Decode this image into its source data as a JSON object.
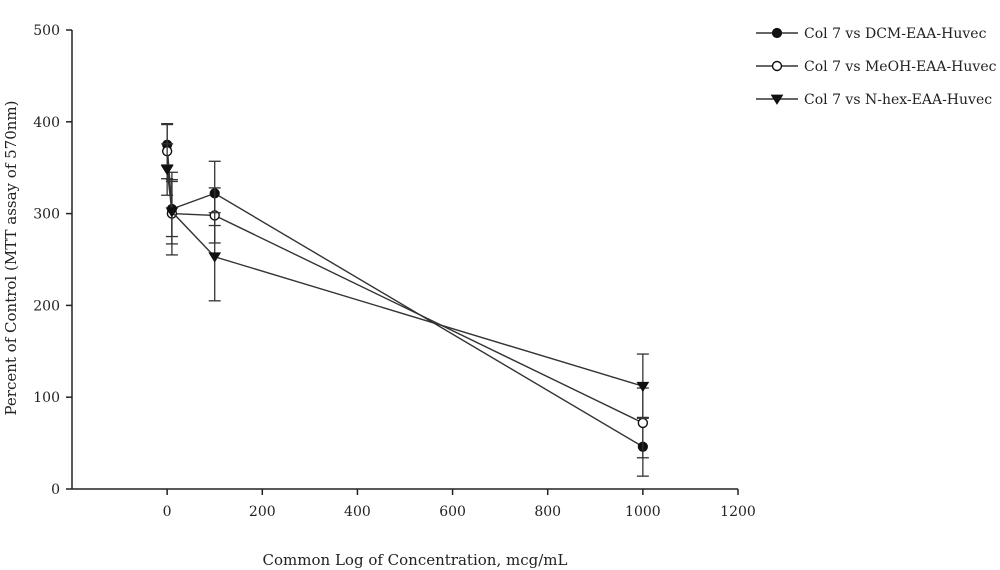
{
  "chart_data": {
    "type": "line",
    "xlabel": "Common Log of Concentration, mcg/mL",
    "ylabel": "Percent of Control (MTT assay of 570nm)",
    "xlim": [
      -200,
      1200
    ],
    "ylim": [
      0,
      500
    ],
    "xticks": [
      0,
      200,
      400,
      600,
      800,
      1000,
      1200
    ],
    "yticks": [
      0,
      100,
      200,
      300,
      400,
      500
    ],
    "grid": false,
    "legend_position": "top-right",
    "series": [
      {
        "name": "Col 7 vs DCM-EAA-Huvec",
        "marker": "filled-circle",
        "points": [
          {
            "x": 0,
            "y": 375,
            "err": 22
          },
          {
            "x": 10,
            "y": 305,
            "err": 30
          },
          {
            "x": 100,
            "y": 322,
            "err": 35
          },
          {
            "x": 1000,
            "y": 46,
            "err": 32
          }
        ]
      },
      {
        "name": "Col 7 vs MeOH-EAA-Huvec",
        "marker": "open-circle",
        "points": [
          {
            "x": 0,
            "y": 368,
            "err": 30
          },
          {
            "x": 10,
            "y": 300,
            "err": 45
          },
          {
            "x": 100,
            "y": 298,
            "err": 30
          },
          {
            "x": 1000,
            "y": 72,
            "err": 38
          }
        ]
      },
      {
        "name": "Col 7 vs N-hex-EAA-Huvec",
        "marker": "filled-triangle-down",
        "points": [
          {
            "x": 0,
            "y": 348,
            "err": 28
          },
          {
            "x": 10,
            "y": 302,
            "err": 35
          },
          {
            "x": 100,
            "y": 253,
            "err": 48
          },
          {
            "x": 1000,
            "y": 112,
            "err": 35
          }
        ]
      }
    ]
  }
}
